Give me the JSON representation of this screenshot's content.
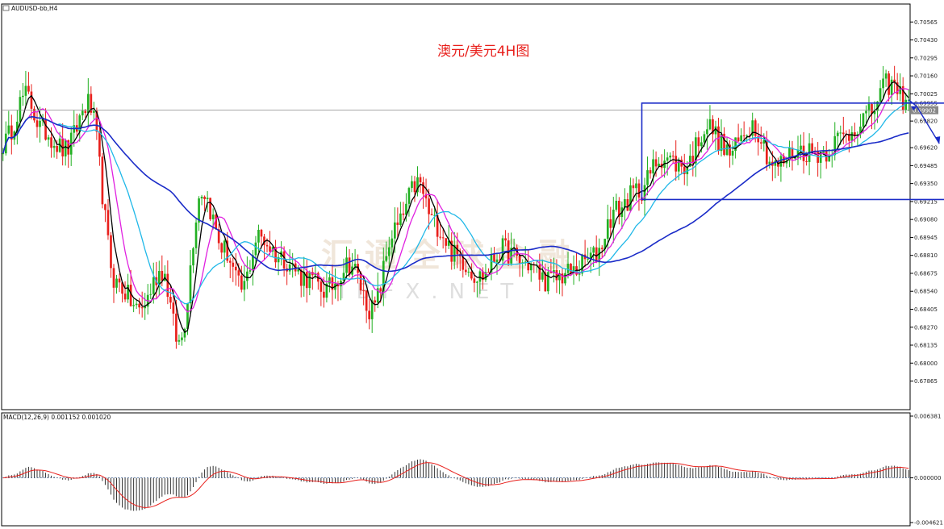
{
  "header": {
    "symbol_label": "AUDUSD-bb,H4",
    "macd_label": "MACD(12,26,9) 0.001152 0.001020",
    "annotation": "澳元/美元4H图",
    "current_price": "0.69902"
  },
  "watermark": {
    "cn": "汇  通  全  球  金  融",
    "en": "IBFX.NET"
  },
  "colors": {
    "bull": "#22b022",
    "bear": "#e8201c",
    "ma_fast": "#000000",
    "ma_mid": "#e020e0",
    "ma_slow": "#20b8e8",
    "ma_long": "#1a2bc8",
    "box": "#1a2bc8",
    "macd_signal": "#e8201c",
    "macd_hist": "#333333"
  },
  "chart_data": {
    "type": "candlestick",
    "symbol": "AUDUSD",
    "timeframe": "H4",
    "ylim": [
      0.6765,
      0.707
    ],
    "y_ticks": [
      "0.70565",
      "0.70430",
      "0.70295",
      "0.70160",
      "0.70025",
      "0.69955",
      "0.69820",
      "0.69620",
      "0.69485",
      "0.69350",
      "0.69215",
      "0.69080",
      "0.68945",
      "0.68810",
      "0.68675",
      "0.68540",
      "0.68405",
      "0.68270",
      "0.68135",
      "0.68000",
      "0.67865"
    ],
    "anchors": [
      [
        0,
        0.6965
      ],
      [
        8,
        0.7001
      ],
      [
        14,
        0.6975
      ],
      [
        22,
        0.696
      ],
      [
        30,
        0.6995
      ],
      [
        40,
        0.686
      ],
      [
        48,
        0.684
      ],
      [
        56,
        0.687
      ],
      [
        62,
        0.6815
      ],
      [
        70,
        0.693
      ],
      [
        78,
        0.6885
      ],
      [
        84,
        0.6855
      ],
      [
        90,
        0.6895
      ],
      [
        98,
        0.688
      ],
      [
        106,
        0.6865
      ],
      [
        114,
        0.6855
      ],
      [
        122,
        0.6875
      ],
      [
        130,
        0.684
      ],
      [
        138,
        0.69
      ],
      [
        146,
        0.6935
      ],
      [
        152,
        0.6905
      ],
      [
        160,
        0.688
      ],
      [
        168,
        0.6865
      ],
      [
        176,
        0.6885
      ],
      [
        184,
        0.6875
      ],
      [
        192,
        0.6862
      ],
      [
        200,
        0.6868
      ],
      [
        208,
        0.688
      ],
      [
        216,
        0.6915
      ],
      [
        224,
        0.693
      ],
      [
        232,
        0.6955
      ],
      [
        240,
        0.6948
      ],
      [
        248,
        0.6978
      ],
      [
        256,
        0.6958
      ],
      [
        264,
        0.698
      ],
      [
        272,
        0.6948
      ],
      [
        280,
        0.696
      ],
      [
        288,
        0.6958
      ],
      [
        296,
        0.697
      ],
      [
        304,
        0.6985
      ],
      [
        312,
        0.701
      ],
      [
        318,
        0.6998
      ]
    ],
    "ma_periods": [
      5,
      10,
      20,
      60
    ],
    "overlays": {
      "box": {
        "x_start": 225,
        "x_end": 350,
        "y_top": 0.69955,
        "y_bottom": 0.6923
      },
      "arrow_up_end": [
        0.6993
      ],
      "arrow_down_end": [
        0.6965
      ]
    },
    "macd": {
      "label": "MACD(12,26,9)",
      "macd_value": 0.001152,
      "signal_value": 0.00102,
      "ylim": [
        -0.004621,
        0.006381
      ],
      "y_ticks": [
        "0.006381",
        "0.000000",
        "-0.004621"
      ]
    }
  }
}
